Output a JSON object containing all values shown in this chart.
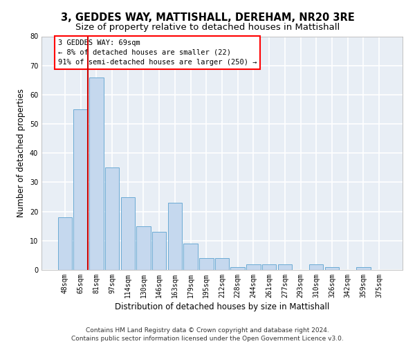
{
  "title": "3, GEDDES WAY, MATTISHALL, DEREHAM, NR20 3RE",
  "subtitle": "Size of property relative to detached houses in Mattishall",
  "xlabel": "Distribution of detached houses by size in Mattishall",
  "ylabel": "Number of detached properties",
  "categories": [
    "48sqm",
    "65sqm",
    "81sqm",
    "97sqm",
    "114sqm",
    "130sqm",
    "146sqm",
    "163sqm",
    "179sqm",
    "195sqm",
    "212sqm",
    "228sqm",
    "244sqm",
    "261sqm",
    "277sqm",
    "293sqm",
    "310sqm",
    "326sqm",
    "342sqm",
    "359sqm",
    "375sqm"
  ],
  "values": [
    18,
    55,
    66,
    35,
    25,
    15,
    13,
    23,
    9,
    4,
    4,
    1,
    2,
    2,
    2,
    0,
    2,
    1,
    0,
    1,
    0
  ],
  "bar_color": "#c5d8ee",
  "bar_edge_color": "#6aaad4",
  "plot_bg_color": "#e8eef5",
  "fig_bg_color": "#ffffff",
  "grid_color": "#ffffff",
  "ylim": [
    0,
    80
  ],
  "yticks": [
    0,
    10,
    20,
    30,
    40,
    50,
    60,
    70,
    80
  ],
  "property_label": "3 GEDDES WAY: 69sqm",
  "annotation_line1": "← 8% of detached houses are smaller (22)",
  "annotation_line2": "91% of semi-detached houses are larger (250) →",
  "vline_color": "#cc0000",
  "footer_line1": "Contains HM Land Registry data © Crown copyright and database right 2024.",
  "footer_line2": "Contains public sector information licensed under the Open Government Licence v3.0.",
  "title_fontsize": 10.5,
  "subtitle_fontsize": 9.5,
  "xlabel_fontsize": 8.5,
  "ylabel_fontsize": 8.5,
  "tick_fontsize": 7,
  "footer_fontsize": 6.5,
  "annotation_fontsize": 7.5
}
